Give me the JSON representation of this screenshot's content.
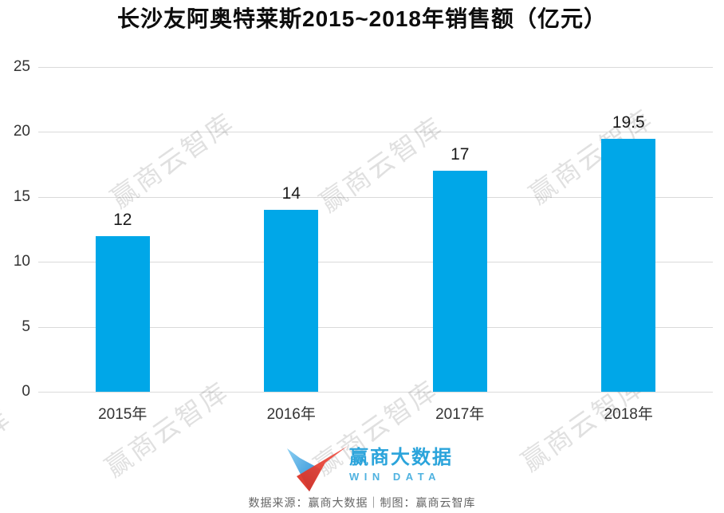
{
  "title": "长沙友阿奥特莱斯2015~2018年销售额（亿元）",
  "chart_data": {
    "type": "bar",
    "title": "长沙友阿奥特莱斯2015~2018年销售额（亿元）",
    "categories": [
      "2015年",
      "2016年",
      "2017年",
      "2018年"
    ],
    "values": [
      12,
      14,
      17,
      19.5
    ],
    "value_labels": [
      "12",
      "14",
      "17",
      "19.5"
    ],
    "xlabel": "",
    "ylabel": "",
    "ylim": [
      0,
      25
    ],
    "yticks": [
      0,
      5,
      10,
      15,
      20,
      25
    ],
    "grid": true,
    "legend": false,
    "bar_color": "#00a7e8"
  },
  "watermark": {
    "text": "赢商云智库"
  },
  "footer": {
    "logo_name": "赢商大数据",
    "logo_sub": "WIN DATA",
    "source_line": "数据来源：赢商大数据｜制图：赢商云智库"
  },
  "colors": {
    "bar": "#00a7e8",
    "gridline": "#dadada",
    "axis_text": "#333333",
    "value_text": "#1a1a1a",
    "logo_blue": "#2ba4db",
    "logo_red": "#e8392b",
    "source_text": "#666666"
  }
}
